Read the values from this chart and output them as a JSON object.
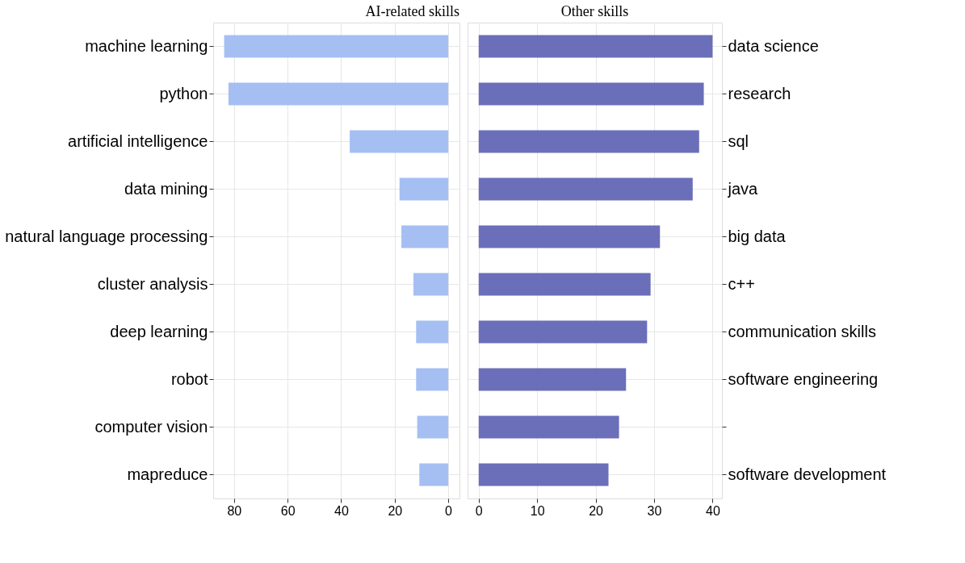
{
  "chart_data": [
    {
      "type": "bar",
      "orientation": "horizontal",
      "title": "AI-related skills",
      "categories": [
        "machine learning",
        "python",
        "artificial intelligence",
        "data mining",
        "natural language processing",
        "cluster analysis",
        "deep learning",
        "robot",
        "computer vision",
        "mapreduce"
      ],
      "values": [
        83.7,
        82.1,
        36.8,
        18.2,
        17.5,
        13.0,
        12.0,
        12.0,
        11.6,
        10.8
      ],
      "color": "#a0bcf2",
      "xlim": [
        87.8,
        -4.2
      ],
      "xticks": [
        80,
        60,
        40,
        20,
        0
      ],
      "grid": true
    },
    {
      "type": "bar",
      "orientation": "horizontal",
      "title": "Other skills",
      "categories": [
        "data science",
        "research",
        "sql",
        "java",
        "big data",
        "c++",
        "communication skills",
        "software engineering",
        null,
        "software development"
      ],
      "values": [
        40.0,
        38.5,
        37.7,
        36.6,
        31.0,
        29.4,
        28.8,
        25.2,
        24.0,
        22.2
      ],
      "color": "#6366b5",
      "xlim": [
        -1.9,
        41.6
      ],
      "xticks": [
        0,
        10,
        20,
        30,
        40
      ],
      "grid": true
    }
  ]
}
